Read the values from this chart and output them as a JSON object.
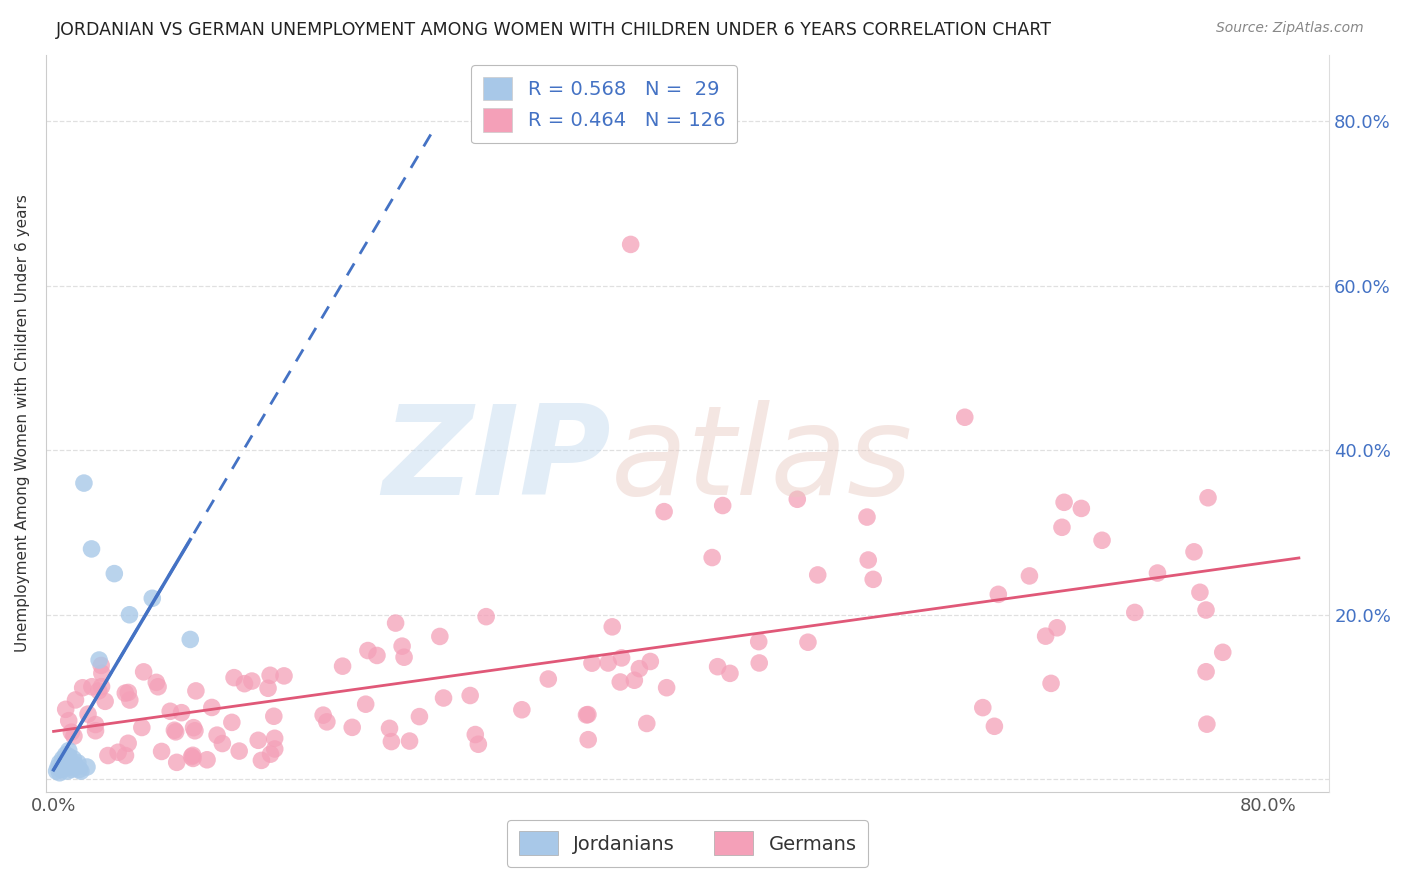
{
  "title": "JORDANIAN VS GERMAN UNEMPLOYMENT AMONG WOMEN WITH CHILDREN UNDER 6 YEARS CORRELATION CHART",
  "source": "Source: ZipAtlas.com",
  "ylabel": "Unemployment Among Women with Children Under 6 years",
  "blue_color": "#a8c8e8",
  "pink_color": "#f4a0b8",
  "blue_line_color": "#4472c4",
  "pink_line_color": "#e05878",
  "background_color": "#ffffff",
  "grid_color": "#e0e0e0",
  "text_color": "#4472c4",
  "title_color": "#222222",
  "source_color": "#888888",
  "xlim": [
    -0.005,
    0.84
  ],
  "ylim": [
    -0.015,
    0.88
  ],
  "x_ticks": [
    0.0,
    0.8
  ],
  "x_tick_labels": [
    "0.0%",
    "80.0%"
  ],
  "y_ticks": [
    0.0,
    0.2,
    0.4,
    0.6,
    0.8
  ],
  "y_tick_labels_right": [
    "",
    "20.0%",
    "40.0%",
    "60.0%",
    "80.0%"
  ],
  "R_jordanian": "0.568",
  "N_jordanian": "29",
  "R_german": "0.464",
  "N_german": "126",
  "legend_label_jordan": "Jordanians",
  "legend_label_german": "Germans",
  "watermark_zip": "ZIP",
  "watermark_atlas": "atlas",
  "title_fontsize": 12.5,
  "source_fontsize": 10,
  "tick_fontsize": 13,
  "legend_fontsize": 14,
  "ylabel_fontsize": 11
}
